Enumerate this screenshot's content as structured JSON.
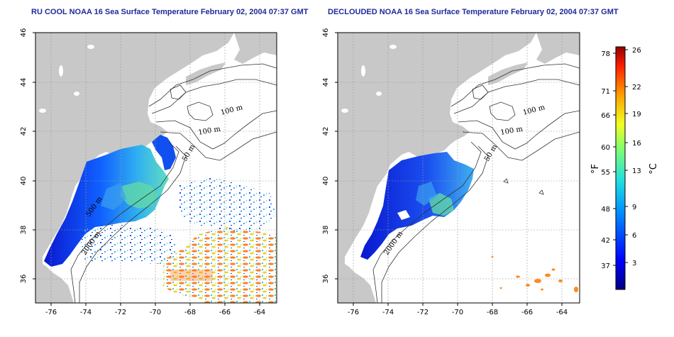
{
  "titles": {
    "left": "RU COOL NOAA 16 Sea Surface Temperature February 02, 2004 07:37 GMT",
    "right": "DECLOUDED NOAA 16 Sea Surface Temperature February 02, 2004 07:37 GMT"
  },
  "axes": {
    "lon_ticks": [
      "-76",
      "-74",
      "-72",
      "-70",
      "-68",
      "-66",
      "-64"
    ],
    "lat_ticks": [
      "46",
      "44",
      "42",
      "40",
      "38",
      "36"
    ]
  },
  "contour_labels": {
    "left": [
      "100 m",
      "100 m",
      "50 m",
      "500 m",
      "2000 m"
    ],
    "right": [
      "100 m",
      "100 m",
      "50 m",
      "2000 m"
    ]
  },
  "colorbar": {
    "fahrenheit_ticks": [
      "78",
      "71",
      "66",
      "60",
      "55",
      "48",
      "42",
      "37"
    ],
    "celsius_ticks": [
      "26",
      "22",
      "19",
      "16",
      "13",
      "9",
      "6",
      "3"
    ],
    "fahrenheit_unit": "°F",
    "celsius_unit": "°C"
  },
  "colors": {
    "land": "#c8c8c8",
    "title": "#1f2a9a",
    "cold": "#1020c0",
    "warm": "#e06010"
  }
}
